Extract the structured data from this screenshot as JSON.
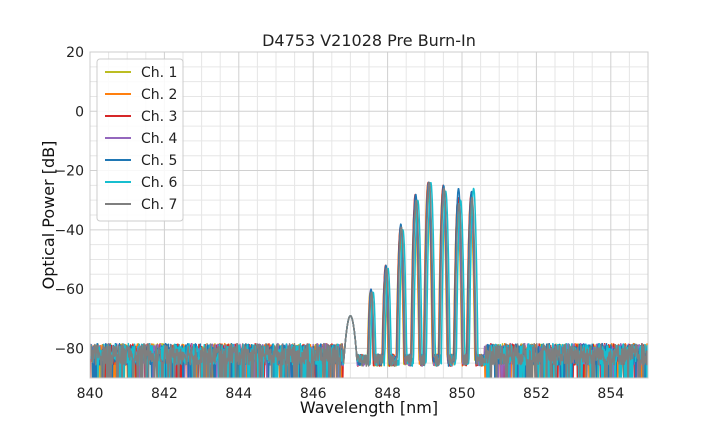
{
  "chart_data": {
    "type": "line",
    "title": "D4753 V21028 Pre Burn-In",
    "xlabel": "Wavelength [nm]",
    "ylabel": "Optical Power [dB]",
    "xlim": [
      840,
      855
    ],
    "ylim": [
      -90,
      20
    ],
    "xticks": [
      840,
      842,
      844,
      846,
      848,
      850,
      852,
      854
    ],
    "yticks": [
      20,
      0,
      -20,
      -40,
      -60,
      -80
    ],
    "x_minor_step": 0.5,
    "y_minor_step": 5,
    "grid": true,
    "legend_position": "top-left",
    "noise_floor": {
      "mean": -82,
      "spread": 6,
      "wavelength_ranges": [
        [
          840,
          846.8
        ],
        [
          850.6,
          855
        ]
      ]
    },
    "series": [
      {
        "name": "Ch. 1",
        "color": "#bcbd22",
        "peaks": [
          [
            847.55,
            -61
          ],
          [
            847.95,
            -55
          ],
          [
            848.35,
            -42
          ],
          [
            848.75,
            -32
          ],
          [
            849.1,
            -25
          ],
          [
            849.5,
            -27
          ],
          [
            849.9,
            -33
          ],
          [
            850.25,
            -32
          ]
        ]
      },
      {
        "name": "Ch. 2",
        "color": "#ff7f0e",
        "peaks": [
          [
            847.55,
            -61
          ],
          [
            847.95,
            -54
          ],
          [
            848.35,
            -40
          ],
          [
            848.75,
            -31
          ],
          [
            849.1,
            -24
          ],
          [
            849.5,
            -26
          ],
          [
            849.9,
            -30
          ],
          [
            850.25,
            -29
          ]
        ]
      },
      {
        "name": "Ch. 3",
        "color": "#d62728",
        "peaks": [
          [
            847.55,
            -61
          ],
          [
            847.95,
            -52
          ],
          [
            848.35,
            -39
          ],
          [
            848.75,
            -28
          ],
          [
            849.1,
            -24
          ],
          [
            849.5,
            -25
          ],
          [
            849.9,
            -29
          ],
          [
            850.25,
            -28
          ]
        ]
      },
      {
        "name": "Ch. 4",
        "color": "#9467bd",
        "peaks": [
          [
            847.55,
            -60
          ],
          [
            847.95,
            -53
          ],
          [
            848.35,
            -40
          ],
          [
            848.75,
            -30
          ],
          [
            849.1,
            -24
          ],
          [
            849.5,
            -27
          ],
          [
            849.9,
            -34
          ],
          [
            850.25,
            -30
          ]
        ]
      },
      {
        "name": "Ch. 5",
        "color": "#1f77b4",
        "peaks": [
          [
            847.55,
            -60
          ],
          [
            847.95,
            -52
          ],
          [
            848.35,
            -38
          ],
          [
            848.75,
            -28
          ],
          [
            849.1,
            -24
          ],
          [
            849.5,
            -25
          ],
          [
            849.9,
            -26
          ],
          [
            850.25,
            -27
          ]
        ]
      },
      {
        "name": "Ch. 6",
        "color": "#17becf",
        "peaks": [
          [
            847.6,
            -61
          ],
          [
            848.0,
            -53
          ],
          [
            848.4,
            -40
          ],
          [
            848.8,
            -30
          ],
          [
            849.15,
            -24
          ],
          [
            849.55,
            -27
          ],
          [
            849.95,
            -30
          ],
          [
            850.3,
            -26
          ]
        ]
      },
      {
        "name": "Ch. 7",
        "color": "#7f7f7f",
        "peaks": [
          [
            847.55,
            -61
          ],
          [
            847.95,
            -53
          ],
          [
            848.35,
            -39
          ],
          [
            848.75,
            -30
          ],
          [
            849.1,
            -24
          ],
          [
            849.5,
            -26
          ],
          [
            849.9,
            -31
          ],
          [
            850.25,
            -29
          ]
        ]
      }
    ]
  }
}
